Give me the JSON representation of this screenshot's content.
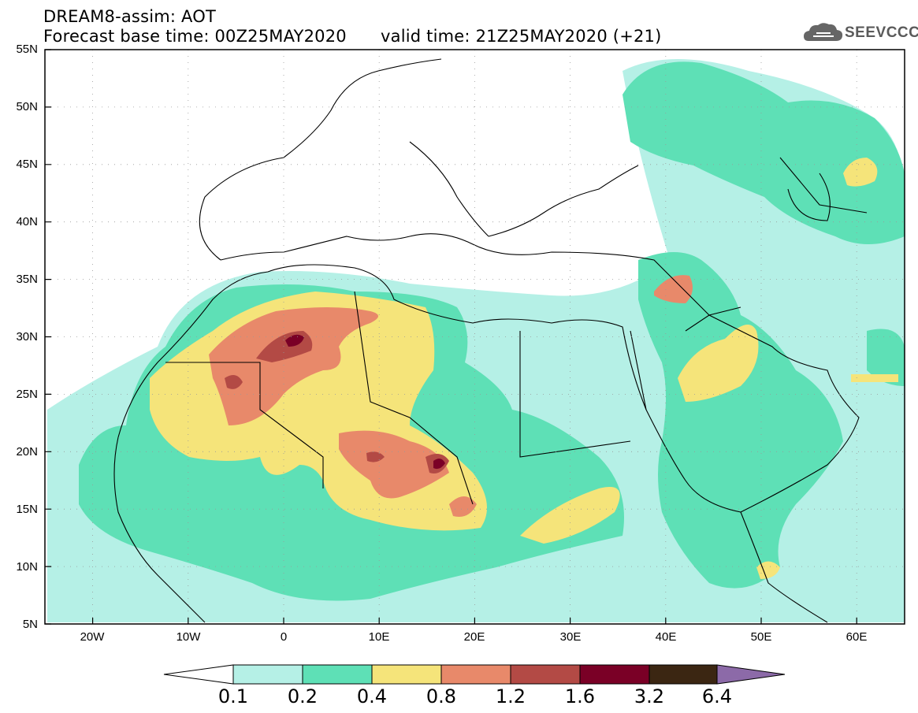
{
  "header": {
    "title": "DREAM8-assim: AOT",
    "base_time": "Forecast base time: 00Z25MAY2020",
    "valid_time": "valid time: 21Z25MAY2020 (+21)",
    "logo_text": "SEEVCCC"
  },
  "map": {
    "lat_labels": [
      "55N",
      "50N",
      "45N",
      "40N",
      "35N",
      "30N",
      "25N",
      "20N",
      "15N",
      "10N",
      "5N"
    ],
    "lon_labels": [
      "20W",
      "10W",
      "0",
      "10E",
      "20E",
      "30E",
      "40E",
      "50E",
      "60E"
    ],
    "extent": {
      "lon_min": -25,
      "lon_max": 65,
      "lat_min": 5,
      "lat_max": 55
    }
  },
  "colorbar": {
    "levels": [
      "0.1",
      "0.2",
      "0.4",
      "0.8",
      "1.2",
      "1.6",
      "3.2",
      "6.4"
    ],
    "colors": [
      "#b5f0e6",
      "#5ee0b6",
      "#f5e47a",
      "#e8896a",
      "#b34a45",
      "#7a0026",
      "#3b2612",
      "#8c6aa8"
    ]
  },
  "aot_fields": [
    {
      "name": "saharan-plume",
      "level": "0.4"
    },
    {
      "name": "middle-east-plume",
      "level": "0.4"
    },
    {
      "name": "caspian-plume",
      "level": "0.4"
    }
  ]
}
